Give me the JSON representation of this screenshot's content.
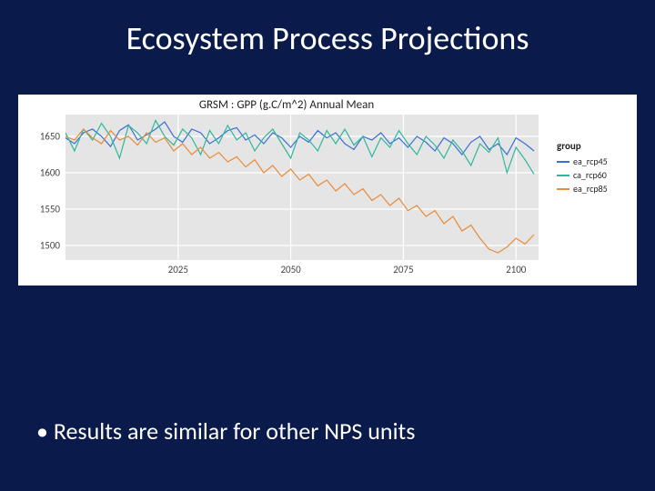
{
  "slide": {
    "title": "Ecosystem Process Projections",
    "bullet": "Results are similar for other NPS units",
    "background_color": "#0a1a4a",
    "title_color": "#ffffff",
    "title_fontsize": 36,
    "bullet_color": "#ffffff",
    "bullet_fontsize": 26
  },
  "chart": {
    "type": "line",
    "title": "GRSM :  GPP (g.C/m^2) Annual Mean",
    "title_fontsize": 13,
    "background_color": "#ffffff",
    "plot_background": "#e5e5e5",
    "grid_color": "#ffffff",
    "x": {
      "label": "",
      "min": 2000,
      "max": 2105,
      "ticks": [
        2025,
        2050,
        2075,
        2100
      ]
    },
    "y": {
      "label": "",
      "min": 1480,
      "max": 1680,
      "ticks": [
        1500,
        1550,
        1600,
        1650
      ]
    },
    "legend": {
      "title": "group",
      "items": [
        {
          "label": "ea_rcp45",
          "color": "#3b6fd4"
        },
        {
          "label": "ca_rcp60",
          "color": "#2fb89a"
        },
        {
          "label": "ea_rcp85",
          "color": "#e88b3a"
        }
      ]
    },
    "series": [
      {
        "name": "ea_rcp45",
        "color": "#3b6fd4",
        "line_width": 1.2,
        "x": [
          2000,
          2002,
          2004,
          2006,
          2008,
          2010,
          2012,
          2014,
          2016,
          2018,
          2020,
          2022,
          2024,
          2026,
          2028,
          2030,
          2032,
          2034,
          2036,
          2038,
          2040,
          2042,
          2044,
          2046,
          2048,
          2050,
          2052,
          2054,
          2056,
          2058,
          2060,
          2062,
          2064,
          2066,
          2068,
          2070,
          2072,
          2074,
          2076,
          2078,
          2080,
          2082,
          2084,
          2086,
          2088,
          2090,
          2092,
          2094,
          2096,
          2098,
          2100,
          2102,
          2104
        ],
        "y": [
          1648,
          1640,
          1655,
          1660,
          1650,
          1636,
          1658,
          1666,
          1645,
          1652,
          1660,
          1670,
          1650,
          1642,
          1660,
          1655,
          1640,
          1648,
          1658,
          1662,
          1645,
          1652,
          1640,
          1655,
          1648,
          1635,
          1650,
          1642,
          1658,
          1648,
          1655,
          1640,
          1632,
          1650,
          1645,
          1655,
          1640,
          1648,
          1635,
          1650,
          1642,
          1630,
          1648,
          1640,
          1625,
          1642,
          1650,
          1632,
          1640,
          1625,
          1648,
          1640,
          1630
        ]
      },
      {
        "name": "ca_rcp60",
        "color": "#2fb89a",
        "line_width": 1.2,
        "x": [
          2000,
          2002,
          2004,
          2006,
          2008,
          2010,
          2012,
          2014,
          2016,
          2018,
          2020,
          2022,
          2024,
          2026,
          2028,
          2030,
          2032,
          2034,
          2036,
          2038,
          2040,
          2042,
          2044,
          2046,
          2048,
          2050,
          2052,
          2054,
          2056,
          2058,
          2060,
          2062,
          2064,
          2066,
          2068,
          2070,
          2072,
          2074,
          2076,
          2078,
          2080,
          2082,
          2084,
          2086,
          2088,
          2090,
          2092,
          2094,
          2096,
          2098,
          2100,
          2102,
          2104
        ],
        "y": [
          1655,
          1630,
          1660,
          1645,
          1668,
          1650,
          1620,
          1665,
          1655,
          1640,
          1672,
          1650,
          1638,
          1660,
          1648,
          1625,
          1658,
          1640,
          1665,
          1645,
          1655,
          1630,
          1648,
          1660,
          1640,
          1620,
          1655,
          1645,
          1630,
          1658,
          1640,
          1660,
          1638,
          1650,
          1622,
          1648,
          1635,
          1658,
          1640,
          1625,
          1650,
          1638,
          1620,
          1645,
          1630,
          1610,
          1640,
          1628,
          1648,
          1600,
          1635,
          1618,
          1598
        ]
      },
      {
        "name": "ea_rcp85",
        "color": "#e88b3a",
        "line_width": 1.2,
        "x": [
          2000,
          2002,
          2004,
          2006,
          2008,
          2010,
          2012,
          2014,
          2016,
          2018,
          2020,
          2022,
          2024,
          2026,
          2028,
          2030,
          2032,
          2034,
          2036,
          2038,
          2040,
          2042,
          2044,
          2046,
          2048,
          2050,
          2052,
          2054,
          2056,
          2058,
          2060,
          2062,
          2064,
          2066,
          2068,
          2070,
          2072,
          2074,
          2076,
          2078,
          2080,
          2082,
          2084,
          2086,
          2088,
          2090,
          2092,
          2094,
          2096,
          2098,
          2100,
          2102,
          2104
        ],
        "y": [
          1650,
          1645,
          1660,
          1648,
          1640,
          1658,
          1645,
          1650,
          1638,
          1655,
          1642,
          1648,
          1630,
          1640,
          1625,
          1635,
          1620,
          1628,
          1615,
          1622,
          1608,
          1618,
          1600,
          1610,
          1595,
          1605,
          1590,
          1598,
          1582,
          1590,
          1575,
          1585,
          1570,
          1578,
          1562,
          1570,
          1555,
          1565,
          1548,
          1555,
          1540,
          1548,
          1530,
          1540,
          1520,
          1528,
          1510,
          1495,
          1490,
          1498,
          1510,
          1502,
          1515
        ]
      }
    ]
  }
}
